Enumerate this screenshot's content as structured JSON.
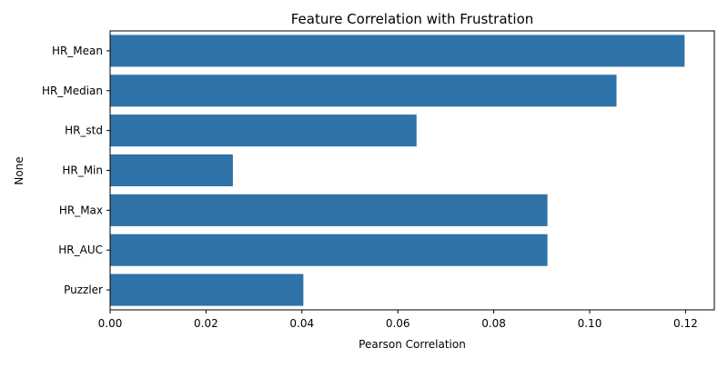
{
  "chart_data": {
    "type": "bar",
    "orientation": "horizontal",
    "title": "Feature Correlation with Frustration",
    "xlabel": "Pearson Correlation",
    "ylabel": "None",
    "categories": [
      "HR_Mean",
      "HR_Median",
      "HR_std",
      "HR_Min",
      "HR_Max",
      "HR_AUC",
      "Puzzler"
    ],
    "values": [
      0.1198,
      0.1056,
      0.0639,
      0.0256,
      0.0912,
      0.0912,
      0.0403
    ],
    "xlim": [
      0,
      0.126
    ],
    "xticks": [
      0.0,
      0.02,
      0.04,
      0.06,
      0.08,
      0.1,
      0.12
    ],
    "xtick_labels": [
      "0.00",
      "0.02",
      "0.04",
      "0.06",
      "0.08",
      "0.10",
      "0.12"
    ],
    "grid": false,
    "bar_color": "#2f73a8"
  }
}
